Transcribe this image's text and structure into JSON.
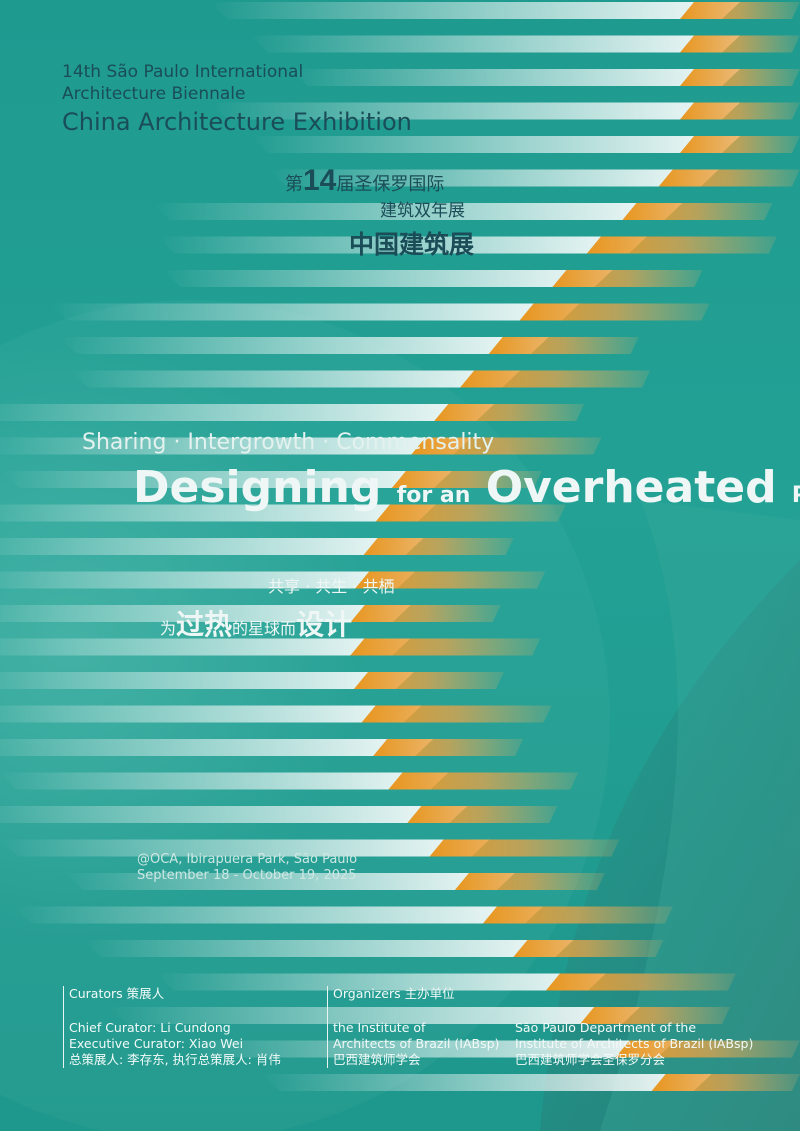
{
  "header": {
    "en_line1": "14th São Paulo International",
    "en_line2": "Architecture Biennale",
    "en_line3": "China Architecture Exhibition",
    "cn_prefix": "第",
    "cn_number": "14",
    "cn_suffix": "届圣保罗国际",
    "cn_line2": "建筑双年展",
    "cn_line3": "中国建筑展"
  },
  "theme": {
    "subtitle": "Sharing · Intergrowth · Commensality",
    "title_word1": "Designing",
    "title_word2": "for an",
    "title_word3": "Overheated",
    "title_word4": "Planet",
    "cn_subtitle": "共享 · 共生 · 共栖",
    "cn_t1": "为",
    "cn_t2": "过热",
    "cn_t3": "的星球而",
    "cn_t4": "设计"
  },
  "venue": {
    "location": "@OCA, Ibirapuera Park,  São Paulo",
    "dates": "September 18 - October 19, 2025"
  },
  "curators": {
    "heading": "Curators  策展人",
    "chief": "Chief Curator: Li Cundong",
    "executive": "Executive Curator: Xiao Wei",
    "cn": "总策展人: 李存东, 执行总策展人: 肖伟"
  },
  "organizers": {
    "heading": "Organizers   主办单位",
    "org1_line1": "the Institute of",
    "org1_line2": "Architects of Brazil (IABsp)",
    "org1_cn": "巴西建筑师学会",
    "org2_line1": "São Paulo Department of the",
    "org2_line2": "Institute of Architects of Brazil (IABsp)",
    "org2_cn": "巴西建筑师学会圣保罗分会"
  },
  "colors": {
    "background": "#22a094",
    "stripe_white": "#ffffff",
    "stripe_orange": "#e39a24",
    "text_dark": "#1a4d57",
    "text_light": "#eef7f5"
  }
}
